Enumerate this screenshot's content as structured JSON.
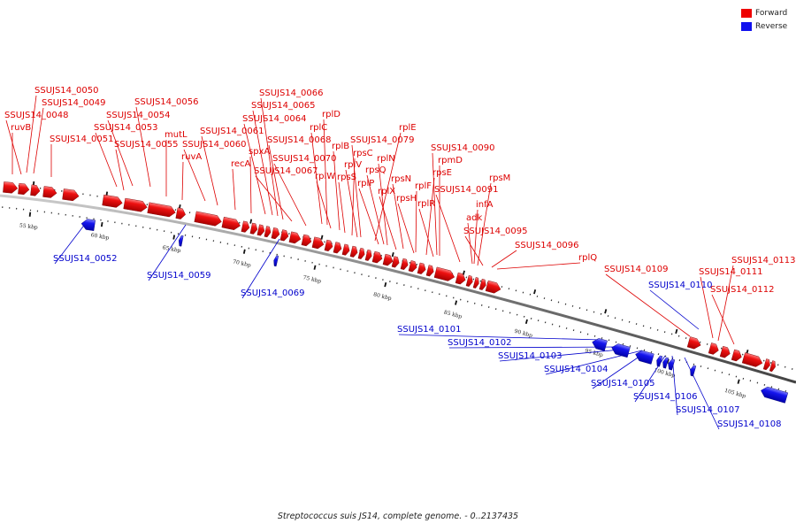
{
  "legend": {
    "forward": {
      "label": "Forward",
      "color": "#ee0000"
    },
    "reverse": {
      "label": "Reverse",
      "color": "#1111ee"
    }
  },
  "caption": "Streptococcus suis JS14, complete genome. - 0..2137435",
  "backbone_color": "#777777",
  "ticks": [
    {
      "label": "55 kbp"
    },
    {
      "label": "60 kbp"
    },
    {
      "label": "65 kbp"
    },
    {
      "label": "70 kbp"
    },
    {
      "label": "75 kbp"
    },
    {
      "label": "80 kbp"
    },
    {
      "label": "85 kbp"
    },
    {
      "label": "90 kbp"
    },
    {
      "label": "95 kbp"
    },
    {
      "label": "100 kbp"
    },
    {
      "label": "105 kbp"
    }
  ],
  "forward_labels": [
    "SSUJS14_0050",
    "SSUJS14_0049",
    "SSUJS14_0048",
    "ruvB",
    "SSUJS14_0051",
    "SSUJS14_0056",
    "SSUJS14_0054",
    "SSUJS14_0053",
    "mutL",
    "SSUJS14_0055",
    "SSUJS14_0060",
    "ruvA",
    "SSUJS14_0061",
    "recA",
    "SSUJS14_0066",
    "SSUJS14_0065",
    "SSUJS14_0064",
    "spxA",
    "SSUJS14_0067",
    "SSUJS14_0068",
    "SSUJS14_0070",
    "rplD",
    "rplC",
    "rplB",
    "rplW",
    "rplE",
    "SSUJS14_0079",
    "rpsC",
    "rplN",
    "rplV",
    "rpsQ",
    "rpsS",
    "rplP",
    "rpsN",
    "rplX",
    "rpsH",
    "rplF",
    "rplR",
    "SSUJS14_0090",
    "rpmD",
    "rpsE",
    "SSUJS14_0091",
    "rpsM",
    "infA",
    "adk",
    "SSUJS14_0095",
    "SSUJS14_0096",
    "rplQ",
    "SSUJS14_0109",
    "SSUJS14_0113",
    "SSUJS14_0111",
    "SSUJS14_0112"
  ],
  "reverse_labels": [
    "SSUJS14_0052",
    "SSUJS14_0059",
    "SSUJS14_0069",
    "SSUJS14_0110",
    "SSUJS14_0101",
    "SSUJS14_0102",
    "SSUJS14_0103",
    "SSUJS14_0104",
    "SSUJS14_0105",
    "SSUJS14_0106",
    "SSUJS14_0107",
    "SSUJS14_0108"
  ]
}
